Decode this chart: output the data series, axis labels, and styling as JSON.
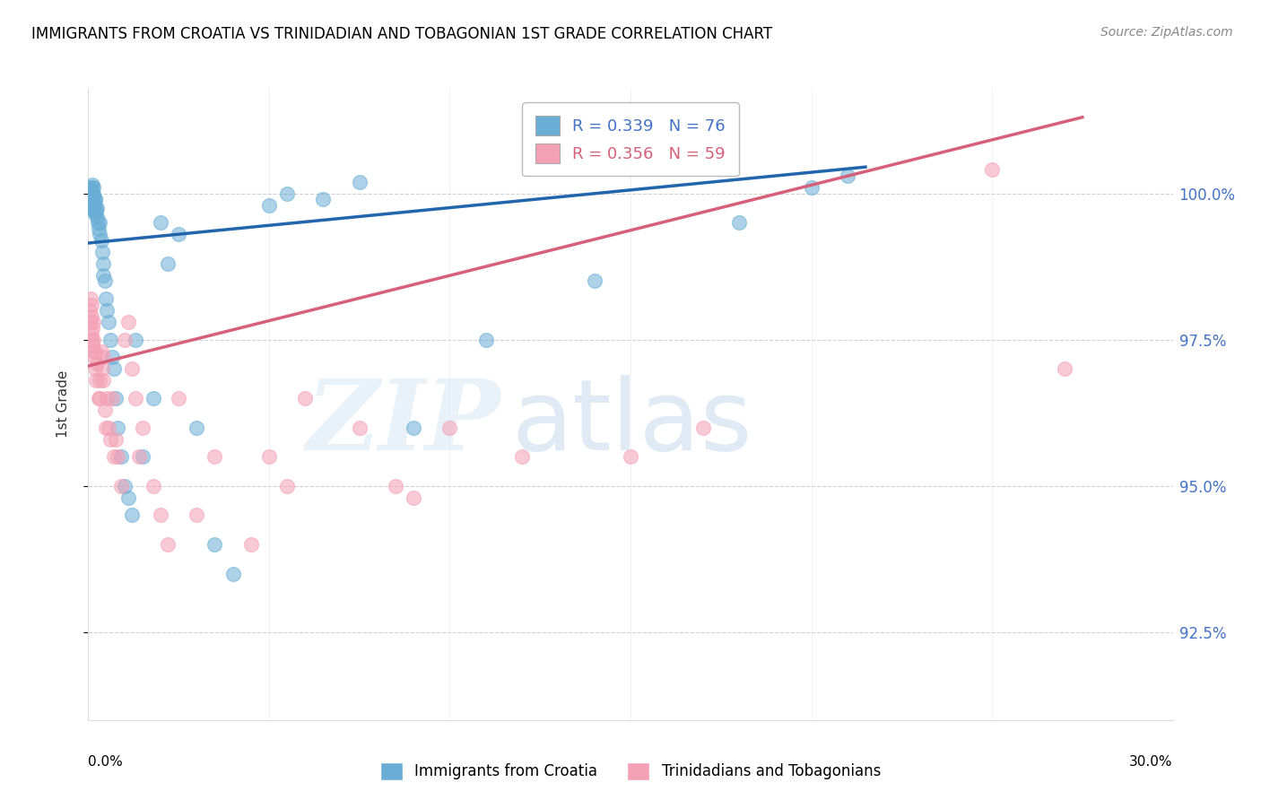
{
  "title": "IMMIGRANTS FROM CROATIA VS TRINIDADIAN AND TOBAGONIAN 1ST GRADE CORRELATION CHART",
  "source": "Source: ZipAtlas.com",
  "ylabel": "1st Grade",
  "y_ticks": [
    92.5,
    95.0,
    97.5,
    100.0
  ],
  "y_tick_labels": [
    "92.5%",
    "95.0%",
    "97.5%",
    "100.0%"
  ],
  "xlim": [
    0.0,
    30.0
  ],
  "ylim": [
    91.0,
    101.8
  ],
  "blue_color": "#6aaed6",
  "pink_color": "#f4a0b5",
  "blue_line_color": "#2166ac",
  "pink_line_color": "#d6607a",
  "legend_blue_R": "0.339",
  "legend_blue_N": "76",
  "legend_pink_R": "0.356",
  "legend_pink_N": "59",
  "legend_label_blue": "Immigrants from Croatia",
  "legend_label_pink": "Trinidadians and Tobagonians",
  "right_axis_color": "#4472c4",
  "pink_text_color": "#d6607a",
  "grid_color": "#cccccc",
  "blue_line_x0": 0.0,
  "blue_line_x1": 21.5,
  "blue_line_y0": 99.15,
  "blue_line_y1": 100.45,
  "pink_line_x0": 0.0,
  "pink_line_x1": 27.5,
  "pink_line_y0": 97.05,
  "pink_line_y1": 101.3,
  "blue_scatter_x": [
    0.05,
    0.05,
    0.06,
    0.07,
    0.08,
    0.08,
    0.09,
    0.1,
    0.1,
    0.1,
    0.11,
    0.11,
    0.12,
    0.12,
    0.13,
    0.13,
    0.14,
    0.15,
    0.15,
    0.15,
    0.16,
    0.17,
    0.18,
    0.18,
    0.19,
    0.2,
    0.2,
    0.22,
    0.23,
    0.25,
    0.27,
    0.28,
    0.3,
    0.32,
    0.35,
    0.38,
    0.4,
    0.42,
    0.45,
    0.48,
    0.5,
    0.55,
    0.6,
    0.65,
    0.7,
    0.75,
    0.8,
    0.9,
    1.0,
    1.1,
    1.2,
    1.3,
    1.5,
    1.8,
    2.0,
    2.2,
    2.5,
    3.0,
    3.5,
    4.0,
    5.0,
    5.5,
    6.5,
    7.5,
    9.0,
    11.0,
    14.0,
    18.0,
    20.0,
    21.0,
    0.05,
    0.06,
    0.07,
    0.09,
    0.1,
    0.11
  ],
  "blue_scatter_y": [
    100.1,
    100.0,
    99.95,
    100.05,
    100.1,
    99.9,
    100.0,
    100.1,
    100.05,
    99.95,
    100.0,
    100.15,
    99.9,
    100.0,
    100.0,
    99.8,
    99.85,
    100.1,
    99.95,
    99.75,
    99.8,
    99.7,
    99.9,
    99.65,
    99.8,
    99.7,
    99.9,
    99.7,
    99.6,
    99.75,
    99.5,
    99.4,
    99.5,
    99.3,
    99.2,
    99.0,
    98.8,
    98.6,
    98.5,
    98.2,
    98.0,
    97.8,
    97.5,
    97.2,
    97.0,
    96.5,
    96.0,
    95.5,
    95.0,
    94.8,
    94.5,
    97.5,
    95.5,
    96.5,
    99.5,
    98.8,
    99.3,
    96.0,
    94.0,
    93.5,
    99.8,
    100.0,
    99.9,
    100.2,
    96.0,
    97.5,
    98.5,
    99.5,
    100.1,
    100.3,
    99.85,
    100.05,
    99.75,
    99.88,
    99.92,
    99.98
  ],
  "pink_scatter_x": [
    0.05,
    0.06,
    0.07,
    0.08,
    0.09,
    0.1,
    0.1,
    0.11,
    0.12,
    0.13,
    0.14,
    0.15,
    0.16,
    0.18,
    0.2,
    0.22,
    0.25,
    0.28,
    0.3,
    0.32,
    0.35,
    0.38,
    0.4,
    0.42,
    0.45,
    0.48,
    0.5,
    0.55,
    0.6,
    0.65,
    0.7,
    0.75,
    0.8,
    0.9,
    1.0,
    1.1,
    1.2,
    1.3,
    1.4,
    1.5,
    1.8,
    2.0,
    2.2,
    2.5,
    3.0,
    3.5,
    4.5,
    5.0,
    5.5,
    6.0,
    7.5,
    8.5,
    9.0,
    10.0,
    12.0,
    15.0,
    17.0,
    25.0,
    27.0
  ],
  "pink_scatter_y": [
    98.0,
    97.8,
    98.2,
    97.5,
    97.9,
    97.6,
    98.1,
    97.4,
    97.7,
    97.3,
    97.8,
    97.5,
    97.2,
    97.0,
    97.3,
    96.8,
    97.1,
    96.5,
    96.8,
    96.5,
    97.3,
    97.0,
    96.8,
    97.2,
    96.3,
    96.0,
    96.5,
    96.0,
    95.8,
    96.5,
    95.5,
    95.8,
    95.5,
    95.0,
    97.5,
    97.8,
    97.0,
    96.5,
    95.5,
    96.0,
    95.0,
    94.5,
    94.0,
    96.5,
    94.5,
    95.5,
    94.0,
    95.5,
    95.0,
    96.5,
    96.0,
    95.0,
    94.8,
    96.0,
    95.5,
    95.5,
    96.0,
    100.4,
    97.0
  ]
}
